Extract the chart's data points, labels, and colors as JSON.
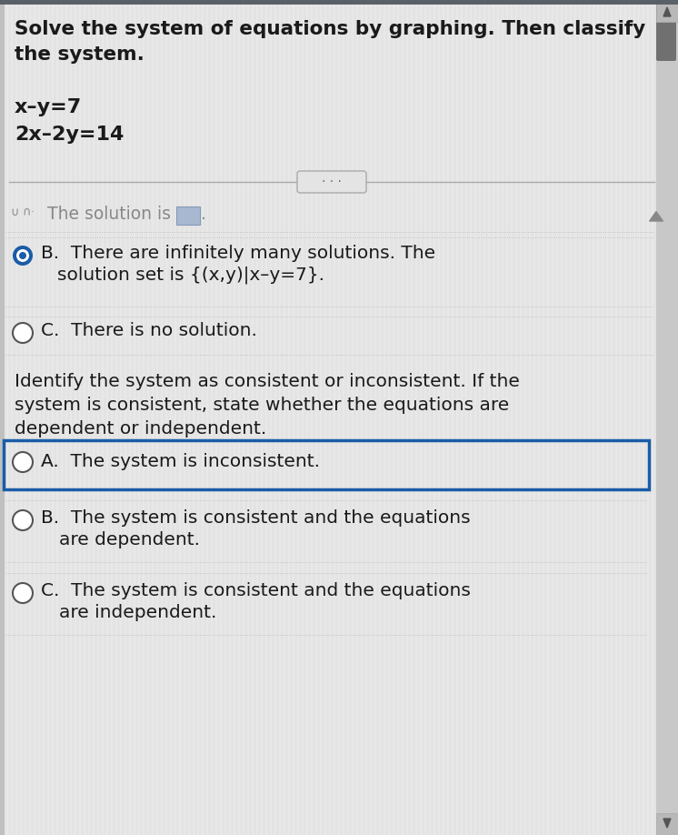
{
  "bg_color": "#d4d4d4",
  "content_bg": "#e8e8e8",
  "stripe_color": "#dcdcdc",
  "title_text1": "Solve the system of equations by graphing. Then classify",
  "title_text2": "the system.",
  "eq1": "x–y=7",
  "eq2": "2x–2y=14",
  "text_color": "#1a1a1a",
  "gray_text": "#777777",
  "blue_color": "#1a5ca8",
  "blue_dark": "#1a3f7a",
  "radio_border": "#555555",
  "dotted_color": "#c0c0c0",
  "font_size_title": 15.5,
  "font_size_eq": 15,
  "font_size_option": 14.5,
  "font_size_small": 12,
  "scrollbar_bg": "#b0b0b0",
  "scrollbar_thumb": "#707070",
  "scroll_arrow_color": "#555555",
  "top_bar_color": "#5a6068"
}
